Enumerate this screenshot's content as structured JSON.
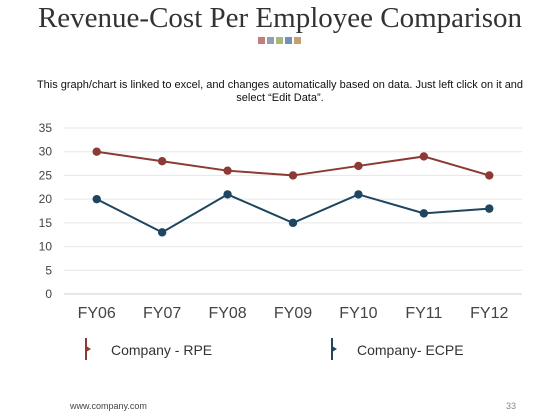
{
  "slide": {
    "title": "Revenue-Cost Per Employee Comparison",
    "subtitle_line1": "This graph/chart is linked to excel, and changes automatically based on data. Just left click on it and",
    "subtitle_line2": "select “Edit Data”.",
    "deco_colors": [
      "#c0807a",
      "#8fa0b0",
      "#a8b878",
      "#6f93b8",
      "#c8a070"
    ],
    "footer_url": "www.company.com",
    "page_number": "33"
  },
  "chart_data": {
    "type": "line",
    "categories": [
      "FY06",
      "FY07",
      "FY08",
      "FY09",
      "FY10",
      "FY11",
      "FY12"
    ],
    "series": [
      {
        "name": "Company - RPE",
        "values": [
          30,
          28,
          26,
          25,
          27,
          29,
          25
        ],
        "color": "#8b3a34"
      },
      {
        "name": "Company- ECPE",
        "values": [
          20,
          13,
          21,
          15,
          21,
          17,
          18
        ],
        "color": "#1f4661"
      }
    ],
    "y_ticks": [
      0,
      5,
      10,
      15,
      20,
      25,
      30,
      35
    ],
    "ylim": [
      0,
      35
    ],
    "grid": true,
    "legend_position": "bottom"
  }
}
